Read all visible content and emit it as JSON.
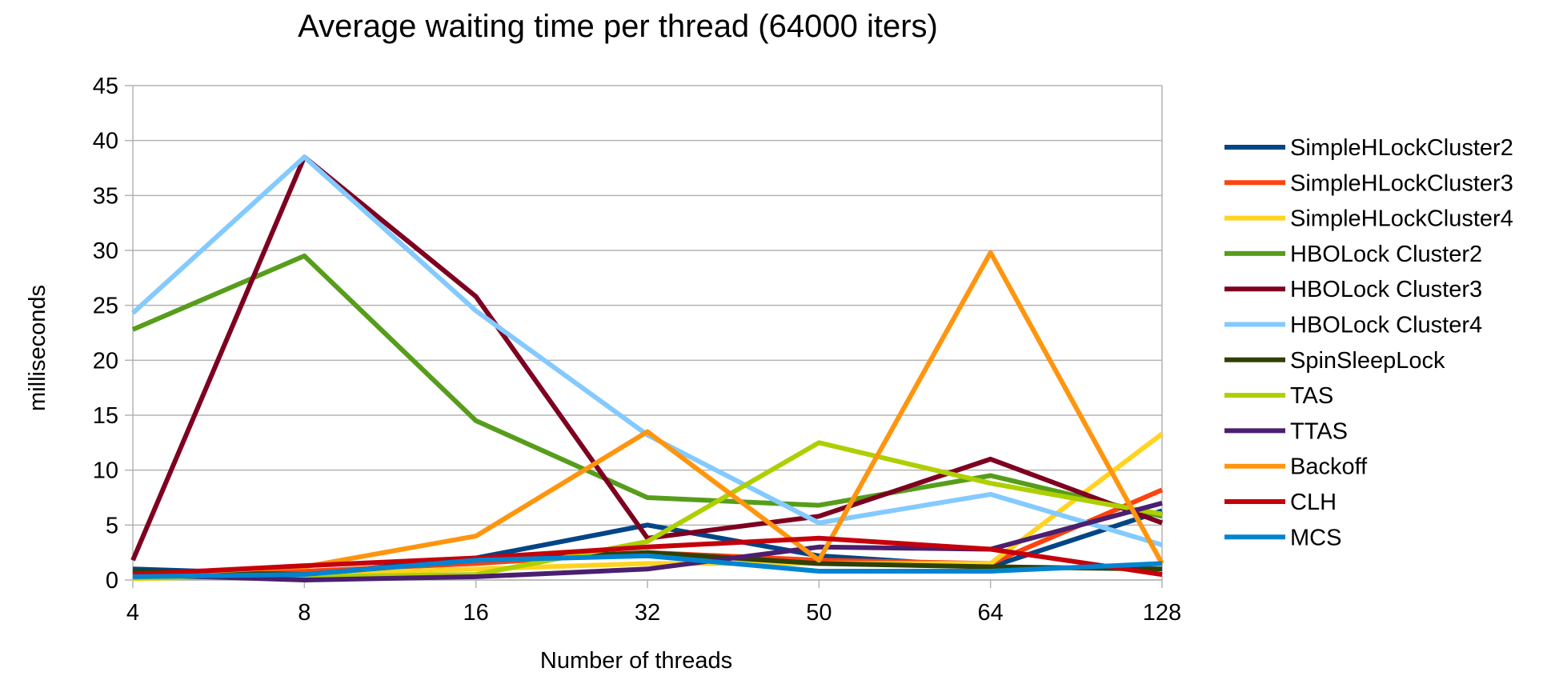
{
  "chart_data": {
    "type": "line",
    "title": "Average waiting time per thread (64000 iters)",
    "xlabel": "Number of threads",
    "ylabel": "milliseconds",
    "categories": [
      "4",
      "8",
      "16",
      "32",
      "50",
      "64",
      "128"
    ],
    "ylim": [
      0,
      45
    ],
    "yticks": [
      "0",
      "5",
      "10",
      "15",
      "20",
      "25",
      "30",
      "35",
      "40",
      "45"
    ],
    "grid": "horizontal",
    "legend_position": "right",
    "series": [
      {
        "name": "SimpleHLockCluster2",
        "color": "#004586",
        "values": [
          1.0,
          0.5,
          2.0,
          5.0,
          2.2,
          1.2,
          6.3
        ]
      },
      {
        "name": "SimpleHLockCluster3",
        "color": "#ff420e",
        "values": [
          0.3,
          0.8,
          1.5,
          2.5,
          1.8,
          1.5,
          8.2
        ]
      },
      {
        "name": "SimpleHLockCluster4",
        "color": "#ffd320",
        "values": [
          0.1,
          0.5,
          1.0,
          1.5,
          1.5,
          1.5,
          13.3
        ]
      },
      {
        "name": "HBOLock Cluster2",
        "color": "#579d1c",
        "values": [
          22.8,
          29.5,
          14.5,
          7.5,
          6.8,
          9.5,
          5.8
        ]
      },
      {
        "name": "HBOLock Cluster3",
        "color": "#7e0021",
        "values": [
          1.8,
          38.5,
          25.8,
          3.8,
          5.8,
          11.0,
          5.2
        ]
      },
      {
        "name": "HBOLock Cluster4",
        "color": "#83caff",
        "values": [
          24.3,
          38.5,
          24.5,
          13.2,
          5.2,
          7.8,
          3.2
        ]
      },
      {
        "name": "SpinSleepLock",
        "color": "#314004",
        "values": [
          0.8,
          0.5,
          1.8,
          2.5,
          1.5,
          1.2,
          1.0
        ]
      },
      {
        "name": "TAS",
        "color": "#aecf00",
        "values": [
          0.2,
          0.3,
          0.5,
          3.5,
          12.5,
          8.8,
          6.0
        ]
      },
      {
        "name": "TTAS",
        "color": "#4b1f6f",
        "values": [
          0.5,
          0.0,
          0.3,
          1.0,
          3.0,
          2.8,
          7.0
        ]
      },
      {
        "name": "Backoff",
        "color": "#ff950e",
        "values": [
          0.5,
          1.2,
          4.0,
          13.5,
          1.8,
          29.8,
          1.5
        ]
      },
      {
        "name": "CLH",
        "color": "#c5000b",
        "values": [
          0.5,
          1.3,
          2.0,
          3.0,
          3.8,
          2.8,
          0.5
        ]
      },
      {
        "name": "MCS",
        "color": "#0084d1",
        "values": [
          0.3,
          0.5,
          1.8,
          2.2,
          0.8,
          0.8,
          1.5
        ]
      }
    ]
  }
}
